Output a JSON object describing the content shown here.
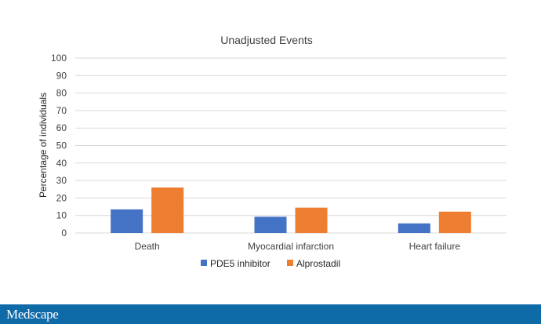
{
  "chart_data": {
    "type": "bar",
    "title": "Unadjusted Events",
    "ylabel": "Percentage of individuals",
    "xlabel": "",
    "ylim": [
      0,
      100
    ],
    "yticks": [
      0,
      10,
      20,
      30,
      40,
      50,
      60,
      70,
      80,
      90,
      100
    ],
    "categories": [
      "Death",
      "Myocardial infarction",
      "Heart failure"
    ],
    "grid": true,
    "legend_position": "bottom",
    "series": [
      {
        "name": "PDE5 inhibitor",
        "values": [
          13.5,
          9.3,
          5.5
        ],
        "color": "#4472c4"
      },
      {
        "name": "Alprostadil",
        "values": [
          26.0,
          14.5,
          12.2
        ],
        "color": "#ed7d31"
      }
    ]
  },
  "footer": {
    "brand": "Medscape",
    "color": "#0f6aa8"
  }
}
